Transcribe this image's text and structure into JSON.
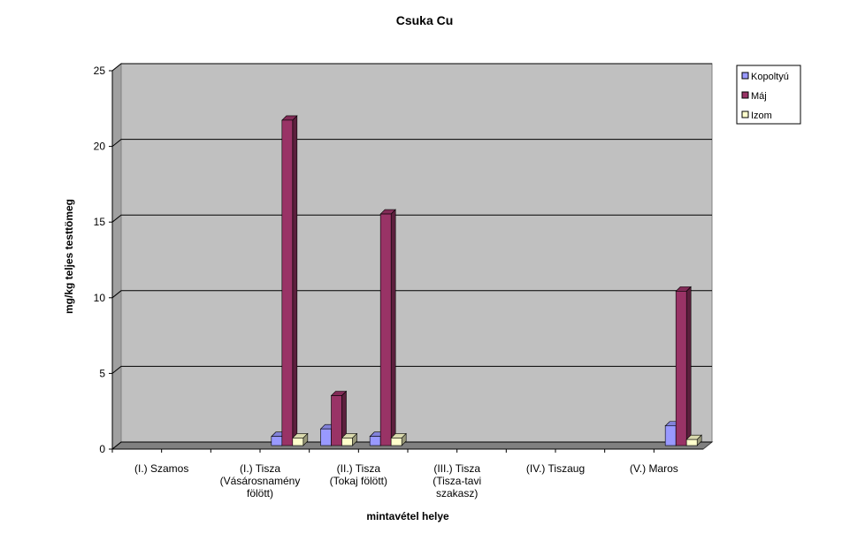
{
  "chart_data": {
    "type": "bar3d",
    "title": "Csuka Cu",
    "x_label": "mintavétel helye",
    "y_label": "mg/kg teljes testtömeg",
    "categories": [
      "(I.) Szamos",
      null,
      "(I.) Tisza (Vásárosnamény fölött)",
      null,
      "(II.) Tisza (Tokaj fölött)",
      null,
      "(III.) Tisza (Tisza-tavi szakasz)",
      null,
      "(IV.) Tiszaug",
      null,
      "(V.) Maros",
      null
    ],
    "series": [
      {
        "name": "Kopoltyú",
        "color": "#9999ff",
        "values": [
          null,
          null,
          null,
          0.6,
          1.1,
          0.6,
          null,
          null,
          null,
          null,
          null,
          1.3
        ]
      },
      {
        "name": "Máj",
        "color": "#993366",
        "values": [
          null,
          null,
          null,
          21.5,
          3.3,
          15.3,
          null,
          null,
          null,
          null,
          null,
          10.2
        ]
      },
      {
        "name": "Izom",
        "color": "#ffffcc",
        "values": [
          null,
          null,
          null,
          0.5,
          0.5,
          0.5,
          null,
          null,
          null,
          null,
          null,
          0.4
        ]
      }
    ],
    "ylim": [
      0,
      25
    ],
    "yticks": [
      0,
      5,
      10,
      15,
      20,
      25
    ],
    "grid": true,
    "legend": "right"
  }
}
